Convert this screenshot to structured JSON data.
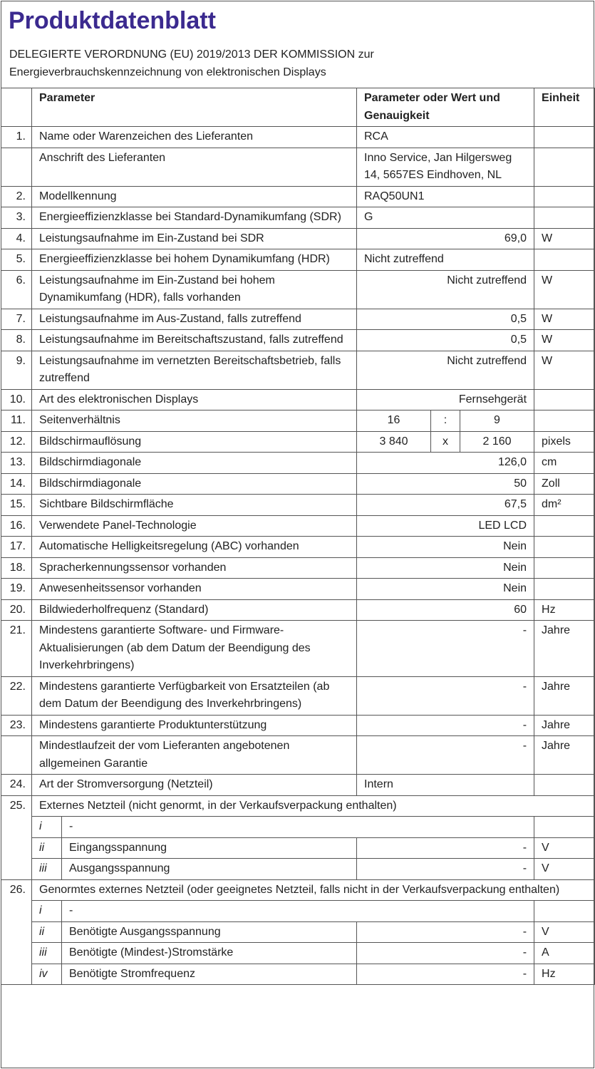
{
  "header": {
    "title": "Produktdatenblatt",
    "subtitle": [
      "DELEGIERTE VERORDNUNG (EU) 2019/2013 DER KOMMISSION zur",
      "Energieverbrauchskennzeichnung von elektronischen Displays"
    ]
  },
  "table": {
    "columns": [
      "Parameter",
      "Parameter oder Wert und Genauigkeit",
      "Einheit"
    ],
    "rows": [
      {
        "no": "1.",
        "parameter": "Name oder Warenzeichen des Lieferanten",
        "value": "RCA"
      },
      {
        "parameter": "Anschrift des Lieferanten",
        "value": "Inno Service, Jan Hilgersweg 14, 5657ES Eindhoven, NL"
      },
      {
        "no": "2.",
        "parameter": "Modellkennung",
        "value": "RAQ50UN1"
      },
      {
        "no": "3.",
        "parameter": "Energieeffizienzklasse bei Standard-Dynamikumfang (SDR)",
        "value": "G"
      },
      {
        "no": "4.",
        "parameter": "Leistungsaufnahme im Ein-Zustand bei SDR",
        "value": "69,0",
        "unit": "W"
      },
      {
        "no": "5.",
        "parameter": "Energieeffizienzklasse bei hohem Dynamikumfang (HDR)",
        "value": "Nicht zutreffend"
      },
      {
        "no": "6.",
        "parameter": "Leistungsaufnahme im Ein-Zustand bei hohem Dynamikumfang (HDR), falls vorhanden",
        "value": "Nicht zutreffend",
        "unit": "W"
      },
      {
        "no": "7.",
        "parameter": "Leistungsaufnahme im Aus-Zustand, falls zutreffend",
        "value": "0,5",
        "unit": "W"
      },
      {
        "no": "8.",
        "parameter": "Leistungsaufnahme im Bereitschaftszustand, falls zutreffend",
        "value": "0,5",
        "unit": "W"
      },
      {
        "no": "9.",
        "parameter": "Leistungsaufnahme im vernetzten Bereitschaftsbetrieb, falls zutreffend",
        "value": "Nicht zutreffend",
        "unit": "W"
      },
      {
        "no": "10.",
        "parameter": "Art des elektronischen Displays",
        "value": "Fernsehgerät"
      },
      {
        "no": "11.",
        "parameter": "Seitenverhältnis",
        "value": [
          "16",
          ":",
          "9"
        ]
      },
      {
        "no": "12.",
        "parameter": "Bildschirmauflösung",
        "value": [
          "3 840",
          "x",
          "2 160"
        ],
        "unit": "pixels"
      },
      {
        "no": "13.",
        "parameter": "Bildschirmdiagonale",
        "value": "126,0",
        "unit": "cm"
      },
      {
        "no": "14.",
        "parameter": "Bildschirmdiagonale",
        "value": "50",
        "unit": "Zoll"
      },
      {
        "no": "15.",
        "parameter": "Sichtbare Bildschirmfläche",
        "value": "67,5",
        "unit": "dm²"
      },
      {
        "no": "16.",
        "parameter": "Verwendete Panel-Technologie",
        "value": "LED LCD"
      },
      {
        "no": "17.",
        "parameter": "Automatische Helligkeitsregelung (ABC) vorhanden",
        "value": "Nein"
      },
      {
        "no": "18.",
        "parameter": "Spracherkennungssensor vorhanden",
        "value": "Nein"
      },
      {
        "no": "19.",
        "parameter": "Anwesenheitssensor vorhanden",
        "value": "Nein"
      },
      {
        "no": "20.",
        "parameter": "Bildwiederholfrequenz (Standard)",
        "value": "60",
        "unit": "Hz"
      },
      {
        "no": "21.",
        "parameter": "Mindestens garantierte Software- und Firmware-Aktualisierungen (ab dem Datum der Beendigung des Inverkehrbringens)",
        "value": "-",
        "unit": "Jahre"
      },
      {
        "no": "22.",
        "parameter": "Mindestens garantierte Verfügbarkeit von Ersatzteilen (ab dem Datum der Beendigung des Inverkehrbringens)",
        "value": "-",
        "unit": "Jahre"
      },
      {
        "no": "23.",
        "parameter": "Mindestens garantierte Produktunterstützung",
        "value": "-",
        "unit": "Jahre"
      },
      {
        "parameter": "Mindestlaufzeit der vom Lieferanten angebotenen allgemeinen Garantie",
        "value": "-",
        "unit": "Jahre"
      },
      {
        "no": "24.",
        "parameter": "Art der Stromversorgung (Netzteil)",
        "value": "Intern"
      },
      {
        "no": "25.",
        "parameter": "Externes Netzteil (nicht genormt, in der Verkaufsverpackung enthalten)",
        "sub": [
          {
            "no": "i",
            "parameter": "-"
          },
          {
            "no": "ii",
            "parameter": "Eingangsspannung",
            "value": "-",
            "unit": "V"
          },
          {
            "no": "iii",
            "parameter": "Ausgangsspannung",
            "value": "-",
            "unit": "V"
          }
        ]
      },
      {
        "no": "26.",
        "parameter": "Genormtes externes Netzteil (oder geeignetes Netzteil, falls nicht in der Verkaufsverpackung enthalten)",
        "sub": [
          {
            "no": "i",
            "parameter": "-"
          },
          {
            "no": "ii",
            "parameter": "Benötigte Ausgangsspannung",
            "value": "-",
            "unit": "V"
          },
          {
            "no": "iii",
            "parameter": "Benötigte (Mindest-)Stromstärke",
            "value": "-",
            "unit": "A"
          },
          {
            "no": "iv",
            "parameter": "Benötigte Stromfrequenz",
            "value": "-",
            "unit": "Hz"
          }
        ]
      }
    ]
  }
}
